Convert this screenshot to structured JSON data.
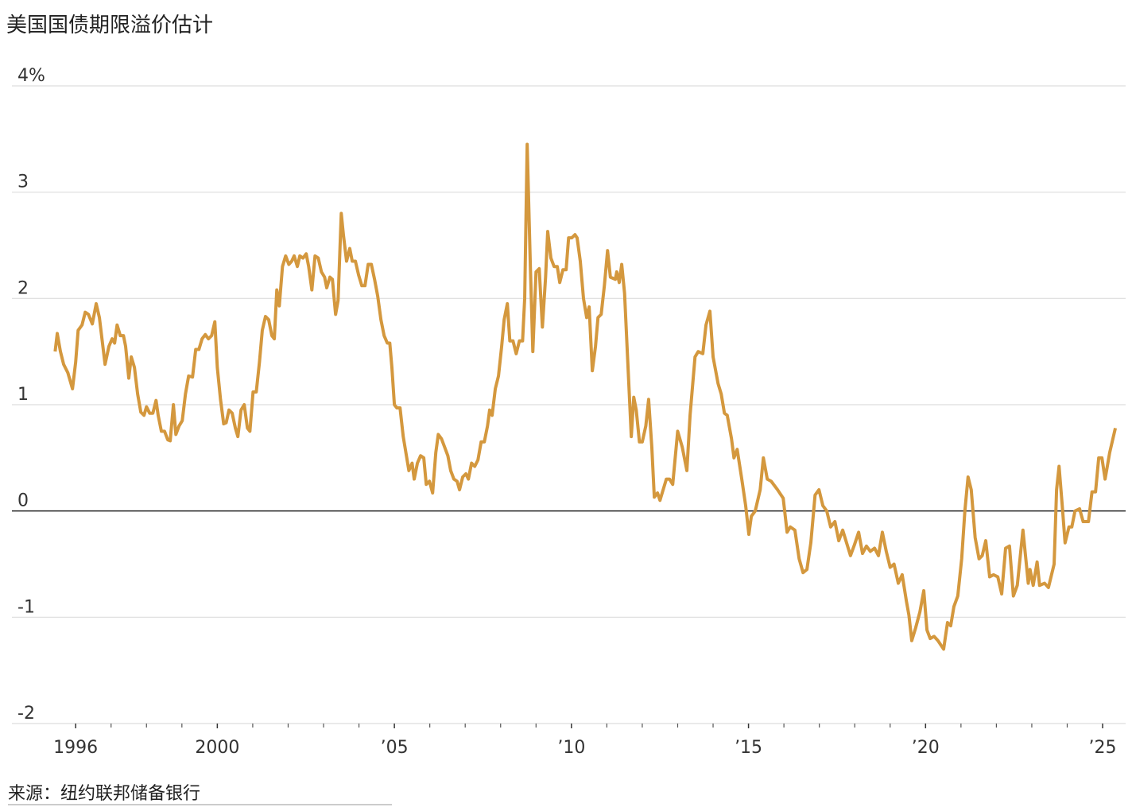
{
  "chart_data": {
    "type": "line",
    "title": "美国国债期限溢价估计",
    "source": "来源：纽约联邦储备银行",
    "x": [
      1995.42,
      1995.48,
      1995.57,
      1995.66,
      1995.78,
      1995.91,
      1996.0,
      1996.07,
      1996.18,
      1996.27,
      1996.36,
      1996.47,
      1996.58,
      1996.67,
      1996.83,
      1996.94,
      1997.03,
      1997.1,
      1997.17,
      1997.26,
      1997.35,
      1997.41,
      1997.5,
      1997.57,
      1997.66,
      1997.75,
      1997.84,
      1997.93,
      1998.0,
      1998.09,
      1998.18,
      1998.27,
      1998.33,
      1998.42,
      1998.51,
      1998.6,
      1998.67,
      1998.76,
      1998.83,
      1998.92,
      1999.01,
      1999.1,
      1999.19,
      1999.3,
      1999.39,
      1999.48,
      1999.57,
      1999.66,
      1999.75,
      1999.84,
      1999.93,
      2000.0,
      2000.09,
      2000.18,
      2000.25,
      2000.33,
      2000.42,
      2000.51,
      2000.58,
      2000.67,
      2000.76,
      2000.85,
      2000.92,
      2001.01,
      2001.1,
      2001.19,
      2001.27,
      2001.36,
      2001.45,
      2001.54,
      2001.61,
      2001.68,
      2001.75,
      2001.84,
      2001.93,
      2002.02,
      2002.1,
      2002.17,
      2002.26,
      2002.33,
      2002.42,
      2002.51,
      2002.58,
      2002.67,
      2002.76,
      2002.85,
      2002.94,
      2003.03,
      2003.09,
      2003.18,
      2003.25,
      2003.34,
      2003.41,
      2003.5,
      2003.56,
      2003.65,
      2003.74,
      2003.81,
      2003.9,
      2003.99,
      2004.08,
      2004.17,
      2004.26,
      2004.35,
      2004.44,
      2004.53,
      2004.62,
      2004.71,
      2004.8,
      2004.87,
      2004.93,
      2005.0,
      2005.07,
      2005.16,
      2005.25,
      2005.34,
      2005.41,
      2005.5,
      2005.56,
      2005.65,
      2005.74,
      2005.83,
      2005.9,
      2005.99,
      2006.08,
      2006.17,
      2006.24,
      2006.33,
      2006.42,
      2006.51,
      2006.59,
      2006.68,
      2006.77,
      2006.84,
      2006.93,
      2007.02,
      2007.09,
      2007.18,
      2007.27,
      2007.36,
      2007.45,
      2007.54,
      2007.63,
      2007.69,
      2007.76,
      2007.85,
      2007.94,
      2008.03,
      2008.1,
      2008.19,
      2008.26,
      2008.35,
      2008.44,
      2008.53,
      2008.62,
      2008.68,
      2008.75,
      2008.84,
      2008.91,
      2009.0,
      2009.09,
      2009.18,
      2009.27,
      2009.33,
      2009.42,
      2009.51,
      2009.6,
      2009.67,
      2009.76,
      2009.85,
      2009.92,
      2010.01,
      2010.1,
      2010.16,
      2010.25,
      2010.34,
      2010.43,
      2010.5,
      2010.59,
      2010.68,
      2010.75,
      2010.84,
      2010.93,
      2011.02,
      2011.1,
      2011.24,
      2011.28,
      2011.35,
      2011.42,
      2011.5,
      2011.69,
      2011.76,
      2011.83,
      2011.92,
      2012.0,
      2012.1,
      2012.18,
      2012.27,
      2012.34,
      2012.43,
      2012.5,
      2012.68,
      2012.77,
      2012.86,
      2013.0,
      2013.13,
      2013.26,
      2013.35,
      2013.49,
      2013.58,
      2013.71,
      2013.8,
      2013.91,
      2014.0,
      2014.14,
      2014.23,
      2014.32,
      2014.4,
      2014.52,
      2014.59,
      2014.68,
      2014.81,
      2014.92,
      2015.01,
      2015.08,
      2015.19,
      2015.33,
      2015.42,
      2015.53,
      2015.64,
      2015.82,
      2015.98,
      2016.09,
      2016.18,
      2016.31,
      2016.43,
      2016.54,
      2016.65,
      2016.76,
      2016.88,
      2016.99,
      2017.1,
      2017.21,
      2017.32,
      2017.44,
      2017.55,
      2017.66,
      2017.77,
      2017.88,
      2017.99,
      2018.11,
      2018.22,
      2018.33,
      2018.44,
      2018.56,
      2018.67,
      2018.78,
      2018.89,
      2019.0,
      2019.11,
      2019.23,
      2019.34,
      2019.46,
      2019.53,
      2019.61,
      2019.72,
      2019.84,
      2019.95,
      2020.04,
      2020.13,
      2020.24,
      2020.35,
      2020.51,
      2020.62,
      2020.71,
      2020.8,
      2020.91,
      2021.02,
      2021.11,
      2021.2,
      2021.29,
      2021.4,
      2021.51,
      2021.6,
      2021.7,
      2021.81,
      2021.92,
      2022.04,
      2022.15,
      2022.26,
      2022.37,
      2022.48,
      2022.59,
      2022.75,
      2022.9,
      2022.95,
      2023.04,
      2023.15,
      2023.22,
      2023.36,
      2023.47,
      2023.63,
      2023.7,
      2023.77,
      2023.86,
      2023.94,
      2024.05,
      2024.13,
      2024.22,
      2024.35,
      2024.45,
      2024.6,
      2024.7,
      2024.8,
      2024.89,
      2024.98,
      2025.07,
      2025.2,
      2025.36
    ],
    "series": [
      {
        "color": "#d4983e",
        "values": [
          1.5,
          1.67,
          1.5,
          1.38,
          1.3,
          1.15,
          1.4,
          1.7,
          1.75,
          1.87,
          1.85,
          1.76,
          1.95,
          1.82,
          1.38,
          1.55,
          1.62,
          1.58,
          1.75,
          1.65,
          1.65,
          1.55,
          1.25,
          1.45,
          1.35,
          1.1,
          0.93,
          0.9,
          0.98,
          0.92,
          0.92,
          1.04,
          0.9,
          0.75,
          0.75,
          0.67,
          0.66,
          1.0,
          0.72,
          0.8,
          0.85,
          1.1,
          1.27,
          1.26,
          1.52,
          1.52,
          1.62,
          1.66,
          1.62,
          1.65,
          1.78,
          1.35,
          1.05,
          0.82,
          0.83,
          0.95,
          0.92,
          0.78,
          0.7,
          0.95,
          1.0,
          0.78,
          0.75,
          1.12,
          1.12,
          1.4,
          1.7,
          1.83,
          1.8,
          1.65,
          1.62,
          2.08,
          1.93,
          2.3,
          2.4,
          2.32,
          2.35,
          2.4,
          2.3,
          2.4,
          2.38,
          2.42,
          2.3,
          2.08,
          2.4,
          2.38,
          2.25,
          2.2,
          2.1,
          2.2,
          2.18,
          1.85,
          1.98,
          2.8,
          2.6,
          2.35,
          2.47,
          2.35,
          2.35,
          2.22,
          2.12,
          2.12,
          2.32,
          2.32,
          2.18,
          2.02,
          1.8,
          1.65,
          1.58,
          1.58,
          1.35,
          1.0,
          0.97,
          0.97,
          0.7,
          0.52,
          0.38,
          0.45,
          0.3,
          0.45,
          0.52,
          0.5,
          0.25,
          0.28,
          0.17,
          0.55,
          0.72,
          0.68,
          0.6,
          0.52,
          0.38,
          0.3,
          0.28,
          0.2,
          0.32,
          0.35,
          0.3,
          0.45,
          0.42,
          0.48,
          0.65,
          0.65,
          0.8,
          0.95,
          0.9,
          1.15,
          1.27,
          1.55,
          1.8,
          1.95,
          1.6,
          1.6,
          1.48,
          1.6,
          1.6,
          2.0,
          3.45,
          2.3,
          1.5,
          2.25,
          2.28,
          1.73,
          2.2,
          2.63,
          2.38,
          2.3,
          2.3,
          2.15,
          2.27,
          2.27,
          2.57,
          2.57,
          2.6,
          2.57,
          2.35,
          2.0,
          1.82,
          1.92,
          1.32,
          1.55,
          1.82,
          1.85,
          2.12,
          2.45,
          2.2,
          2.18,
          2.25,
          2.15,
          2.32,
          2.05,
          0.7,
          1.07,
          0.95,
          0.65,
          0.65,
          0.8,
          1.05,
          0.6,
          0.13,
          0.17,
          0.1,
          0.3,
          0.3,
          0.25,
          0.75,
          0.6,
          0.38,
          0.9,
          1.45,
          1.5,
          1.48,
          1.75,
          1.88,
          1.45,
          1.2,
          1.1,
          0.92,
          0.9,
          0.68,
          0.5,
          0.58,
          0.3,
          0.05,
          -0.22,
          -0.05,
          0.0,
          0.2,
          0.5,
          0.3,
          0.28,
          0.2,
          0.12,
          -0.2,
          -0.15,
          -0.18,
          -0.45,
          -0.58,
          -0.55,
          -0.3,
          0.15,
          0.2,
          0.05,
          0.0,
          -0.15,
          -0.1,
          -0.28,
          -0.18,
          -0.3,
          -0.42,
          -0.32,
          -0.2,
          -0.4,
          -0.33,
          -0.38,
          -0.35,
          -0.42,
          -0.2,
          -0.38,
          -0.53,
          -0.5,
          -0.68,
          -0.6,
          -0.85,
          -0.98,
          -1.22,
          -1.1,
          -0.95,
          -0.75,
          -1.12,
          -1.2,
          -1.18,
          -1.22,
          -1.3,
          -1.05,
          -1.08,
          -0.9,
          -0.8,
          -0.45,
          0.0,
          0.32,
          0.2,
          -0.25,
          -0.45,
          -0.42,
          -0.28,
          -0.62,
          -0.6,
          -0.62,
          -0.78,
          -0.35,
          -0.33,
          -0.8,
          -0.7,
          -0.18,
          -0.68,
          -0.55,
          -0.7,
          -0.48,
          -0.7,
          -0.68,
          -0.72,
          -0.5,
          0.2,
          0.42,
          0.05,
          -0.3,
          -0.15,
          -0.15,
          0.0,
          0.02,
          -0.1,
          -0.1,
          0.18,
          0.18,
          0.5,
          0.5,
          0.3,
          0.55,
          0.78
        ]
      }
    ],
    "xlim": [
      1994.2,
      2025.65
    ],
    "ylim": [
      -2,
      4
    ],
    "yticks": [
      -2,
      -1,
      0,
      1,
      2,
      3,
      {
        "value": 4,
        "label": "4%"
      }
    ],
    "xticks": [
      1996,
      2000,
      {
        "value": 2005,
        "label": "’05"
      },
      {
        "value": 2010,
        "label": "’10"
      },
      {
        "value": 2015,
        "label": "’15"
      },
      {
        "value": 2020,
        "label": "’20"
      },
      {
        "value": 2025,
        "label": "’25"
      }
    ],
    "xminorticks": [
      1997,
      1998,
      1999,
      2001,
      2002,
      2003,
      2004,
      2006,
      2007,
      2008,
      2009,
      2011,
      2012,
      2013,
      2014,
      2016,
      2017,
      2018,
      2019,
      2021,
      2022,
      2023,
      2024
    ],
    "grid": true,
    "zero_line": true
  }
}
